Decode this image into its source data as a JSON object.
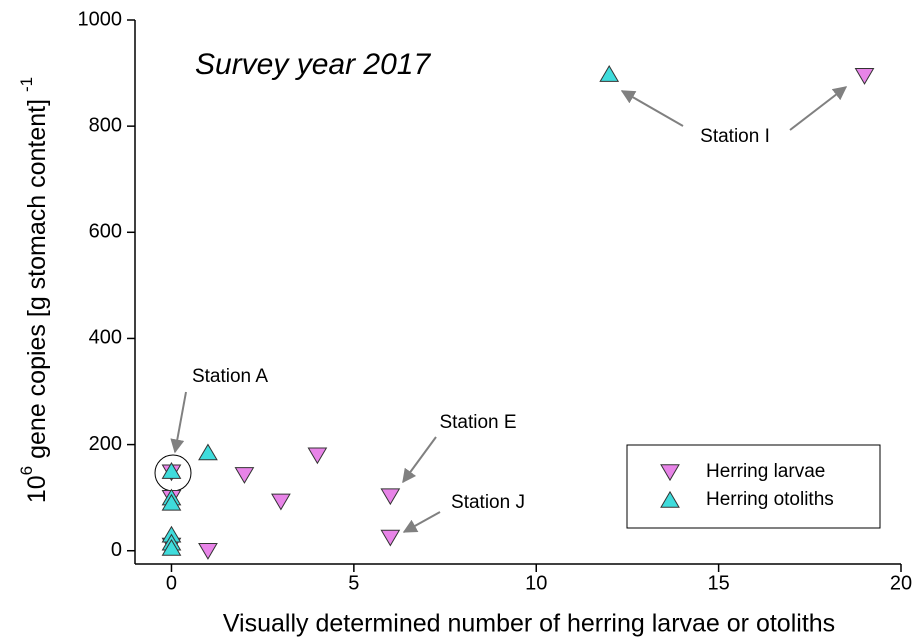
{
  "chart_data": {
    "type": "scatter",
    "title": "Survey year 2017",
    "x_label": "Visually determined number of herring larvae or otoliths",
    "y_label": {
      "base": "10",
      "exponent": "6",
      "text": " gene copies [g stomach content] ",
      "suffix_exponent": "-1"
    },
    "xlim": [
      -1,
      20
    ],
    "ylim": [
      -25,
      1000
    ],
    "xticks": [
      0,
      5,
      10,
      15,
      20
    ],
    "yticks": [
      0,
      200,
      400,
      600,
      800,
      1000
    ],
    "series": [
      {
        "name": "Herring larvae",
        "color": "#e884e8",
        "marker": "triangle-down",
        "x": [
          0,
          0,
          0,
          1,
          2,
          3,
          4,
          6,
          6,
          19
        ],
        "values": [
          148,
          100,
          10,
          0,
          143,
          93,
          180,
          103,
          25,
          895
        ]
      },
      {
        "name": "Herring otoliths",
        "color": "#3fdcdc",
        "marker": "triangle-up",
        "x": [
          0,
          0,
          0,
          0,
          0,
          0,
          1,
          12
        ],
        "values": [
          150,
          100,
          90,
          30,
          15,
          5,
          185,
          898
        ]
      }
    ],
    "annotations": [
      "Station I",
      "Station A",
      "Station E",
      "Station J"
    ],
    "legend": "lower right"
  }
}
